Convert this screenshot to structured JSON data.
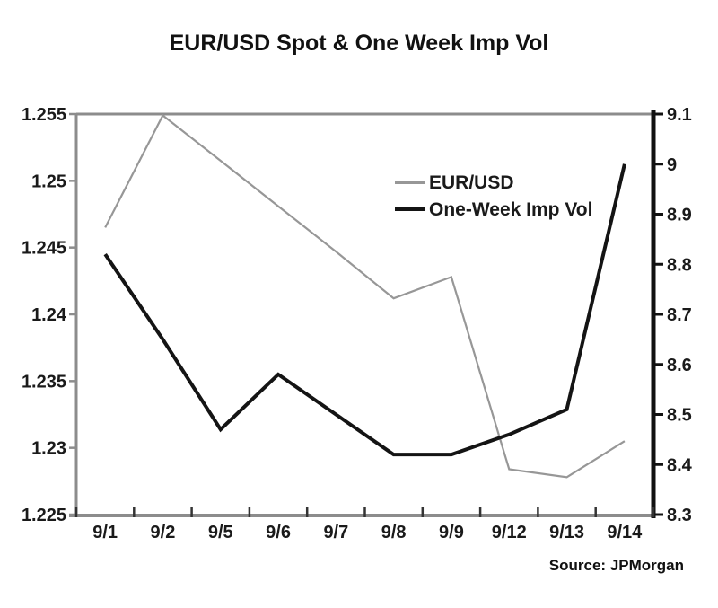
{
  "title": "EUR/USD Spot & One Week Imp Vol",
  "source": "Source: JPMorgan",
  "colors": {
    "eur_usd_line": "#979797",
    "imp_vol_line": "#141414",
    "axis_gray": "#8c8c8c",
    "axis_black": "#111111",
    "text": "#1a1a1a"
  },
  "chart_data": {
    "type": "line",
    "title": "EUR/USD Spot & One Week Imp Vol",
    "categories": [
      "9/1",
      "9/2",
      "9/5",
      "9/6",
      "9/7",
      "9/8",
      "9/9",
      "9/12",
      "9/13",
      "9/14"
    ],
    "series": [
      {
        "name": "EUR/USD",
        "axis": "left",
        "color": "#979797",
        "stroke_width": 2.2,
        "values": [
          1.2465,
          1.2549,
          1.2515,
          1.2481,
          1.2447,
          1.2412,
          1.2428,
          1.2284,
          1.2278,
          1.2305
        ]
      },
      {
        "name": "One-Week Imp Vol",
        "axis": "right",
        "color": "#141414",
        "stroke_width": 4,
        "values": [
          8.82,
          8.65,
          8.47,
          8.58,
          8.5,
          8.42,
          8.42,
          8.46,
          8.51,
          9.0
        ]
      }
    ],
    "left_axis": {
      "min": 1.225,
      "max": 1.255,
      "step": 0.005,
      "tick_labels": [
        "1.255",
        "1.25",
        "1.245",
        "1.24",
        "1.235",
        "1.23",
        "1.225"
      ]
    },
    "right_axis": {
      "min": 8.3,
      "max": 9.1,
      "step": 0.1,
      "tick_labels": [
        "9.1",
        "9",
        "8.9",
        "8.8",
        "8.7",
        "8.6",
        "8.5",
        "8.4",
        "8.3"
      ]
    },
    "xlabel": "",
    "ylabel": "",
    "grid": false,
    "legend_position": "upper-center-right",
    "legend": [
      "EUR/USD",
      "One-Week Imp Vol"
    ]
  }
}
